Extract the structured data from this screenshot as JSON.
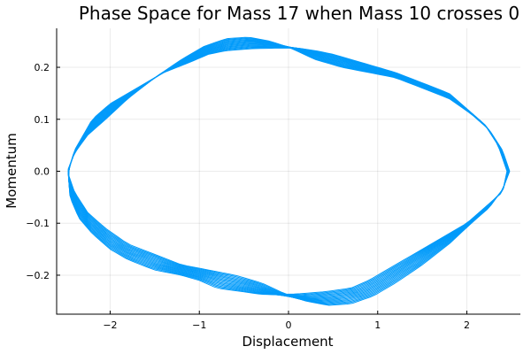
{
  "chart_data": {
    "type": "line",
    "title": "Phase Space for Mass 17 when Mass 10 crosses 0",
    "xlabel": "Displacement",
    "ylabel": "Momentum",
    "xlim": [
      -2.6,
      2.6
    ],
    "ylim": [
      -0.275,
      0.275
    ],
    "xticks": [
      -2,
      -1,
      0,
      1,
      2
    ],
    "xtick_labels": [
      "−2",
      "−1",
      "0",
      "1",
      "2"
    ],
    "yticks": [
      -0.2,
      -0.1,
      0.0,
      0.1,
      0.2
    ],
    "ytick_labels": [
      "−0.2",
      "−0.1",
      "0.0",
      "0.1",
      "0.2"
    ],
    "grid": true,
    "legend": "none",
    "color": "#009AFA",
    "series": [
      {
        "x": [
          2.45,
          2.35,
          2.2,
          2.0,
          1.8,
          1.5,
          1.2,
          1.0,
          0.8,
          0.5,
          0.3,
          0.1,
          -0.1,
          -0.4,
          -0.7,
          -0.9,
          -1.1,
          -1.4,
          -1.7,
          -2.0,
          -2.2,
          -2.4,
          -2.47,
          -2.45,
          -2.35,
          -2.2,
          -2.0,
          -1.8,
          -1.5,
          -1.2,
          -1.0,
          -0.8,
          -0.5,
          -0.3,
          -0.1,
          0.1,
          0.4,
          0.7,
          0.9,
          1.1,
          1.4,
          1.7,
          2.0,
          2.2,
          2.4,
          2.45
        ],
        "y": [
          0.0,
          0.05,
          0.09,
          0.12,
          0.15,
          0.17,
          0.19,
          0.2,
          0.21,
          0.225,
          0.232,
          0.237,
          0.237,
          0.236,
          0.232,
          0.225,
          0.21,
          0.19,
          0.16,
          0.13,
          0.1,
          0.04,
          0.0,
          -0.05,
          -0.09,
          -0.12,
          -0.15,
          -0.17,
          -0.19,
          -0.2,
          -0.21,
          -0.225,
          -0.232,
          -0.237,
          -0.237,
          -0.236,
          -0.232,
          -0.225,
          -0.21,
          -0.19,
          -0.16,
          -0.13,
          -0.1,
          -0.07,
          -0.04,
          0.0
        ]
      },
      {
        "x": [
          2.48,
          2.4,
          2.25,
          2.05,
          1.8,
          1.5,
          1.2,
          0.9,
          0.6,
          0.3,
          0.05,
          -0.2,
          -0.45,
          -0.7,
          -0.95,
          -1.2,
          -1.5,
          -1.8,
          -2.05,
          -2.25,
          -2.4,
          -2.48,
          -2.4,
          -2.25,
          -2.05,
          -1.8,
          -1.5,
          -1.2,
          -0.9,
          -0.6,
          -0.3,
          -0.05,
          0.2,
          0.45,
          0.7,
          0.95,
          1.2,
          1.5,
          1.8,
          2.05,
          2.25,
          2.4,
          2.48
        ],
        "y": [
          0.0,
          0.04,
          0.08,
          0.11,
          0.14,
          0.16,
          0.18,
          0.19,
          0.2,
          0.215,
          0.235,
          0.25,
          0.258,
          0.255,
          0.24,
          0.215,
          0.18,
          0.14,
          0.1,
          0.07,
          0.035,
          0.0,
          -0.04,
          -0.08,
          -0.11,
          -0.14,
          -0.16,
          -0.18,
          -0.19,
          -0.2,
          -0.215,
          -0.235,
          -0.25,
          -0.258,
          -0.255,
          -0.24,
          -0.215,
          -0.18,
          -0.14,
          -0.1,
          -0.07,
          -0.035,
          0.0
        ]
      }
    ],
    "band_layers": 14
  }
}
